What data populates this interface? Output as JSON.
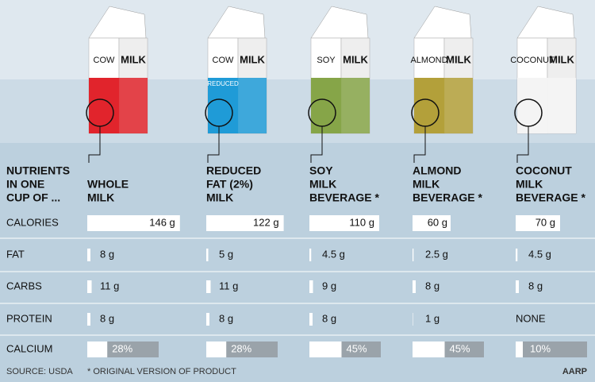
{
  "row_header": [
    "NUTRIENTS",
    "IN ONE",
    "CUP OF ..."
  ],
  "products": [
    {
      "header": [
        "WHOLE",
        "MILK"
      ],
      "carton": [
        "COW",
        "MILK"
      ],
      "carton_color": "#e1242c"
    },
    {
      "header": [
        "REDUCED",
        "FAT (2%)",
        "MILK"
      ],
      "carton": [
        "COW",
        "MILK",
        "REDUCED"
      ],
      "carton_color": "#1f9bd7"
    },
    {
      "header": [
        "SOY",
        "MILK",
        "BEVERAGE *"
      ],
      "carton": [
        "SOY",
        "MILK"
      ],
      "carton_color": "#86a548"
    },
    {
      "header": [
        "ALMOND",
        "MILK",
        "BEVERAGE *"
      ],
      "carton": [
        "ALMOND",
        "MILK"
      ],
      "carton_color": "#b3a03a"
    },
    {
      "header": [
        "COCONUT",
        "MILK",
        "BEVERAGE *"
      ],
      "carton": [
        "COCONUT",
        "MILK"
      ],
      "carton_color": "#f4f4f4"
    }
  ],
  "nutrients": [
    {
      "name": "CALORIES",
      "kind": "box",
      "values": [
        146,
        122,
        110,
        60,
        70
      ],
      "value_labels": [
        "146 g",
        "122 g",
        "110 g",
        "60 g",
        "70 g"
      ]
    },
    {
      "name": "FAT",
      "kind": "tick",
      "values": [
        8,
        5,
        4.5,
        2.5,
        4.5
      ],
      "value_labels": [
        "8 g",
        "5 g",
        "4.5 g",
        "2.5 g",
        "4.5 g"
      ]
    },
    {
      "name": "CARBS",
      "kind": "tick",
      "values": [
        11,
        11,
        9,
        8,
        8
      ],
      "value_labels": [
        "11 g",
        "11 g",
        "9 g",
        "8 g",
        "8 g"
      ]
    },
    {
      "name": "PROTEIN",
      "kind": "tick",
      "values": [
        8,
        8,
        8,
        1,
        null
      ],
      "value_labels": [
        "8 g",
        "8 g",
        "8 g",
        "1 g",
        "NONE"
      ]
    },
    {
      "name": "CALCIUM",
      "kind": "percent",
      "values": [
        28,
        28,
        45,
        45,
        10
      ],
      "value_labels": [
        "28%",
        "28%",
        "45%",
        "45%",
        "10%"
      ]
    }
  ],
  "footer": {
    "source": "SOURCE: USDA",
    "note": "* ORIGINAL VERSION OF PRODUCT",
    "brand": "AARP"
  }
}
